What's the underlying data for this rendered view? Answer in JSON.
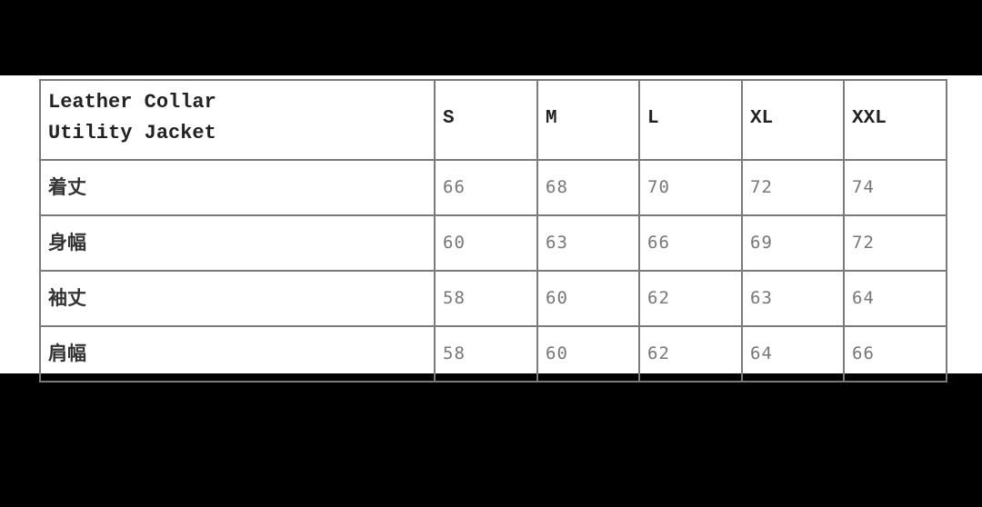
{
  "table": {
    "title": "Leather Collar\nUtility Jacket",
    "sizes": [
      "S",
      "M",
      "L",
      "XL",
      "XXL"
    ],
    "rows": [
      {
        "label": "着丈",
        "values": [
          "66",
          "68",
          "70",
          "72",
          "74"
        ]
      },
      {
        "label": "身幅",
        "values": [
          "60",
          "63",
          "66",
          "69",
          "72"
        ]
      },
      {
        "label": "袖丈",
        "values": [
          "58",
          "60",
          "62",
          "63",
          "64"
        ]
      },
      {
        "label": "肩幅",
        "values": [
          "58",
          "60",
          "62",
          "64",
          "66"
        ]
      }
    ]
  }
}
